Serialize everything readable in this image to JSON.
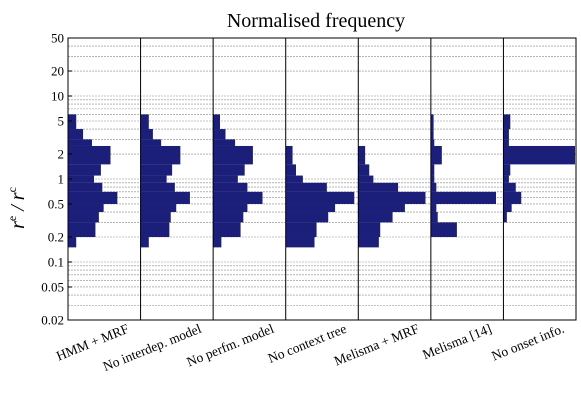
{
  "chart_data": {
    "type": "bar",
    "orientation": "horizontal-histogram-panels",
    "title": "Normalised frequency",
    "ylabel_main": "r",
    "ylabel_sup_num": "e",
    "ylabel_sup_den": "c",
    "yscale": "log",
    "ylim": [
      0.02,
      50
    ],
    "yticks": [
      0.02,
      0.05,
      0.1,
      0.2,
      0.5,
      1,
      2,
      5,
      10,
      20,
      50
    ],
    "ytick_labels": [
      "0.02",
      "0.05",
      "0.1",
      "0.2",
      "0.5",
      "1",
      "2",
      "5",
      "10",
      "20",
      "50"
    ],
    "grid": true,
    "bar_color": "#1c1f7a",
    "bin_edges": [
      0.15,
      0.2,
      0.3,
      0.4,
      0.5,
      0.7,
      0.9,
      1.1,
      1.5,
      2.5,
      3.0,
      4.0,
      6.0
    ],
    "xmax": 1.0,
    "series": [
      {
        "name": "HMM + MRF",
        "frequencies": [
          0.12,
          0.4,
          0.45,
          0.52,
          0.72,
          0.5,
          0.38,
          0.48,
          0.62,
          0.35,
          0.22,
          0.12
        ]
      },
      {
        "name": "No interdep. model",
        "frequencies": [
          0.12,
          0.42,
          0.44,
          0.52,
          0.72,
          0.5,
          0.38,
          0.46,
          0.58,
          0.3,
          0.18,
          0.12
        ]
      },
      {
        "name": "No perfm. model",
        "frequencies": [
          0.12,
          0.4,
          0.44,
          0.5,
          0.72,
          0.5,
          0.36,
          0.46,
          0.58,
          0.32,
          0.18,
          0.1
        ]
      },
      {
        "name": "No context tree",
        "frequencies": [
          0.42,
          0.45,
          0.62,
          0.72,
          1.0,
          0.6,
          0.25,
          0.15,
          0.1,
          0.0,
          0.0,
          0.0
        ]
      },
      {
        "name": "Melisma + MRF",
        "frequencies": [
          0.3,
          0.32,
          0.5,
          0.68,
          0.98,
          0.58,
          0.22,
          0.16,
          0.1,
          0.0,
          0.0,
          0.0
        ]
      },
      {
        "name": "Melisma [14]",
        "frequencies": [
          0.0,
          0.38,
          0.1,
          0.08,
          0.95,
          0.08,
          0.05,
          0.05,
          0.16,
          0.05,
          0.04,
          0.04
        ]
      },
      {
        "name": "No onset info.",
        "frequencies": [
          0.0,
          0.0,
          0.05,
          0.12,
          0.26,
          0.18,
          0.08,
          0.1,
          1.15,
          0.08,
          0.08,
          0.1
        ]
      }
    ]
  }
}
